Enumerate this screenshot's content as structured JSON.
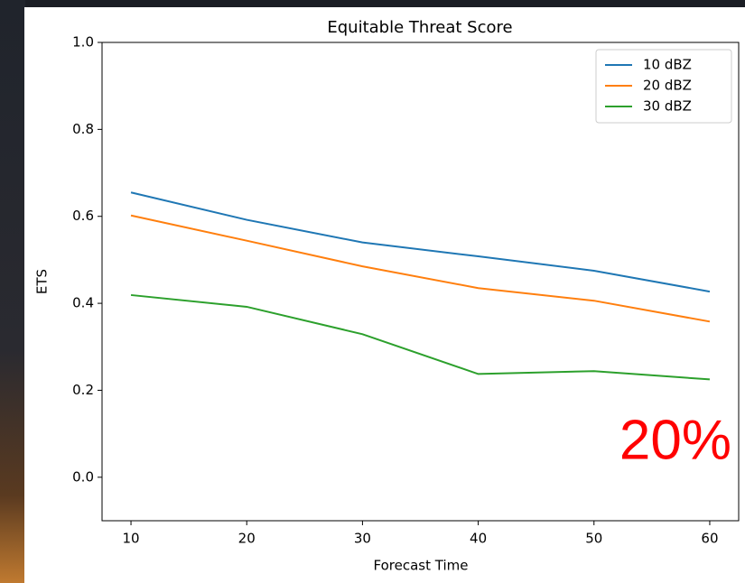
{
  "chart_data": {
    "type": "line",
    "title": "Equitable Threat Score",
    "x_label": "Forecast Time",
    "y_label": "ETS",
    "x": [
      10,
      20,
      30,
      40,
      50,
      60
    ],
    "series": [
      {
        "name": "10 dBZ",
        "color": "#1f77b4",
        "values": [
          0.655,
          0.592,
          0.54,
          0.508,
          0.475,
          0.427
        ]
      },
      {
        "name": "20 dBZ",
        "color": "#ff7f0e",
        "values": [
          0.602,
          0.544,
          0.485,
          0.435,
          0.406,
          0.358
        ]
      },
      {
        "name": "30 dBZ",
        "color": "#2ca02c",
        "values": [
          0.419,
          0.392,
          0.329,
          0.2375,
          0.244,
          0.225
        ]
      }
    ],
    "xlim": [
      7.5,
      62.5
    ],
    "xticks": [
      10,
      20,
      30,
      40,
      50,
      60
    ],
    "ylim": [
      -0.1,
      1.0
    ],
    "yticks": [
      {
        "value": 0,
        "label": "0.0"
      },
      0.2,
      0.4,
      0.6,
      0.8,
      {
        "value": 1,
        "label": "1.0"
      }
    ],
    "legend": "upper right",
    "annotation": "20%",
    "annotation_color": "#ff0000"
  }
}
